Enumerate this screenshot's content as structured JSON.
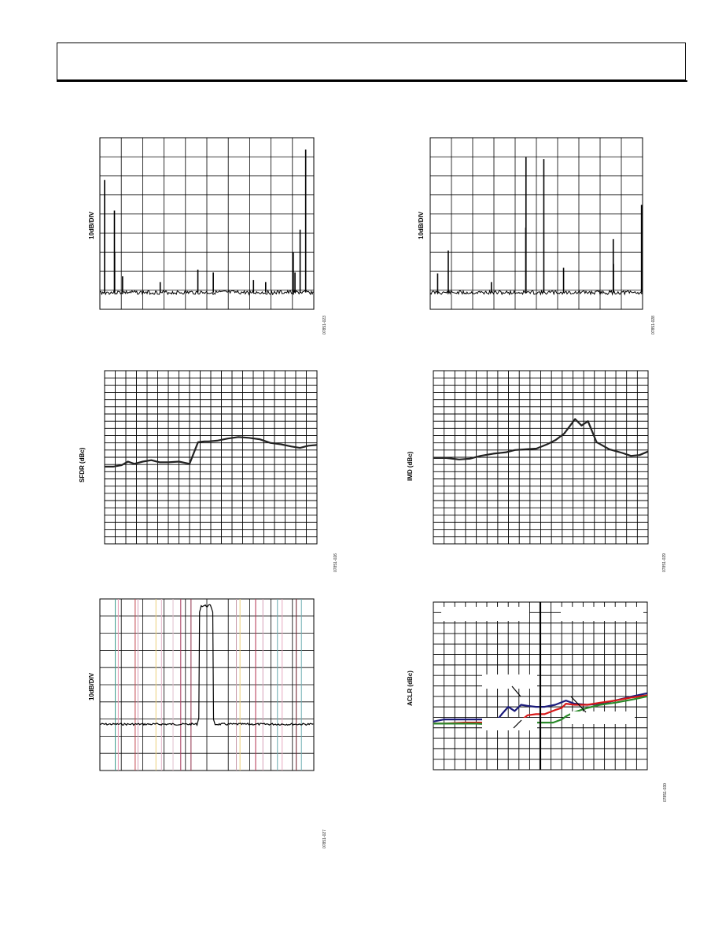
{
  "page": {},
  "chart_data": [
    {
      "id": "fig23",
      "type": "line",
      "ylabel": "10dB/DIV",
      "figure_id": "07851-023",
      "grid": true,
      "x_divisions": 10,
      "y_divisions": 9,
      "noise_floor_div": 0.4,
      "spikes": [
        {
          "x": 0.22,
          "h": 5.9
        },
        {
          "x": 0.68,
          "h": 4.3
        },
        {
          "x": 0.69,
          "h": 2.1
        },
        {
          "x": 1.06,
          "h": 0.85
        },
        {
          "x": 2.82,
          "h": 0.55
        },
        {
          "x": 4.58,
          "h": 1.2
        },
        {
          "x": 5.3,
          "h": 1.05
        },
        {
          "x": 7.18,
          "h": 0.65
        },
        {
          "x": 7.75,
          "h": 0.55
        },
        {
          "x": 9.04,
          "h": 2.1
        },
        {
          "x": 9.12,
          "h": 1.05
        },
        {
          "x": 9.36,
          "h": 3.3
        },
        {
          "x": 9.62,
          "h": 7.5
        }
      ]
    },
    {
      "id": "fig28",
      "type": "line",
      "ylabel": "10dB/DIV",
      "figure_id": "07851-028",
      "grid": true,
      "x_divisions": 10,
      "y_divisions": 9,
      "noise_floor_div": 0.4,
      "spikes": [
        {
          "x": 0.35,
          "h": 1.0
        },
        {
          "x": 0.85,
          "h": 2.2
        },
        {
          "x": 2.88,
          "h": 0.55
        },
        {
          "x": 4.5,
          "h": 3.4
        },
        {
          "x": 4.51,
          "h": 7.1
        },
        {
          "x": 5.35,
          "h": 7.0
        },
        {
          "x": 6.28,
          "h": 1.3
        },
        {
          "x": 8.62,
          "h": 2.8
        },
        {
          "x": 8.63,
          "h": 1.5
        },
        {
          "x": 9.95,
          "h": 4.6
        }
      ]
    },
    {
      "id": "fig26",
      "type": "line",
      "ylabel": "SFDR (dBc)",
      "figure_id": "07851-026",
      "grid": true,
      "x_divisions": 20,
      "y_divisions": 24,
      "series": [
        {
          "x": [
            0,
            0.04,
            0.08,
            0.11,
            0.14,
            0.18,
            0.22,
            0.26,
            0.3,
            0.35,
            0.4,
            0.44,
            0.47,
            0.49,
            0.53,
            0.58,
            0.63,
            0.68,
            0.73,
            0.78,
            0.83,
            0.88,
            0.92,
            0.96,
            1.0
          ],
          "y": [
            10.7,
            10.7,
            10.9,
            11.4,
            11.1,
            11.4,
            11.6,
            11.3,
            11.3,
            11.4,
            11.1,
            14.1,
            14.2,
            14.2,
            14.3,
            14.6,
            14.8,
            14.7,
            14.5,
            14.0,
            13.8,
            13.5,
            13.3,
            13.6,
            13.7
          ]
        }
      ]
    },
    {
      "id": "fig29",
      "type": "line",
      "ylabel": "IMD (dBc)",
      "figure_id": "07851-029",
      "grid": true,
      "x_divisions": 20,
      "y_divisions": 24,
      "series": [
        {
          "x": [
            0,
            0.06,
            0.12,
            0.17,
            0.22,
            0.28,
            0.34,
            0.38,
            0.43,
            0.48,
            0.53,
            0.57,
            0.61,
            0.64,
            0.66,
            0.69,
            0.72,
            0.76,
            0.82,
            0.88,
            0.92,
            0.96,
            1.0
          ],
          "y": [
            11.9,
            11.9,
            11.7,
            11.8,
            12.2,
            12.5,
            12.7,
            13.0,
            13.1,
            13.2,
            13.8,
            14.4,
            15.3,
            16.5,
            17.3,
            16.4,
            17.0,
            14.1,
            13.1,
            12.6,
            12.2,
            12.3,
            12.8
          ]
        }
      ]
    },
    {
      "id": "fig27",
      "type": "line",
      "ylabel": "10dB/DIV",
      "figure_id": "07851-027",
      "grid": true,
      "x_divisions": 10,
      "y_divisions": 10,
      "floor_div": 2.7,
      "band": {
        "x0": 4.55,
        "x1": 5.35,
        "top_div": 9.6
      },
      "colored_lines": [
        {
          "x": 0.72,
          "color": "#3a9a8a"
        },
        {
          "x": 0.86,
          "color": "#e59ab4"
        },
        {
          "x": 1.65,
          "color": "#c0404a"
        },
        {
          "x": 1.78,
          "color": "#d7a0b8"
        },
        {
          "x": 2.62,
          "color": "#ecd07a"
        },
        {
          "x": 2.88,
          "color": "#e3b4c6"
        },
        {
          "x": 3.42,
          "color": "#e2bfcd"
        },
        {
          "x": 3.78,
          "color": "#a63a5e"
        },
        {
          "x": 4.26,
          "color": "#8a2a44"
        },
        {
          "x": 6.38,
          "color": "#c89aaa"
        },
        {
          "x": 6.55,
          "color": "#ecd07a"
        },
        {
          "x": 7.28,
          "color": "#b3324f"
        },
        {
          "x": 7.62,
          "color": "#d7a0b8"
        },
        {
          "x": 8.3,
          "color": "#6aaab0"
        },
        {
          "x": 8.52,
          "color": "#e7a8be"
        },
        {
          "x": 9.18,
          "color": "#6e1a28"
        },
        {
          "x": 9.42,
          "color": "#6aaab0"
        }
      ]
    },
    {
      "id": "fig30",
      "type": "line",
      "ylabel": "ACLR (dBc)",
      "figure_id": "07851-030",
      "grid": true,
      "x_divisions": 20,
      "y_divisions": 16,
      "divider_x": 0.5,
      "series": [
        {
          "color": "#1a1a7a",
          "x": [
            0,
            0.05,
            0.1,
            0.2,
            0.3,
            0.32,
            0.35,
            0.38,
            0.41,
            0.44,
            0.48,
            0.52,
            0.57,
            0.62,
            0.66,
            0.72,
            0.78,
            0.85,
            0.93,
            1.0
          ],
          "y": [
            4.6,
            4.8,
            4.8,
            4.8,
            4.8,
            5.3,
            6.0,
            5.6,
            6.2,
            6.1,
            6.0,
            6.0,
            6.2,
            6.6,
            6.3,
            6.2,
            6.3,
            6.6,
            7.0,
            7.3
          ]
        },
        {
          "color": "#d81818",
          "x": [
            0,
            0.05,
            0.15,
            0.2,
            0.28,
            0.32,
            0.35,
            0.38,
            0.41,
            0.44,
            0.48,
            0.52,
            0.57,
            0.6,
            0.62,
            0.66,
            0.72,
            0.78,
            0.85,
            0.93,
            1.0
          ],
          "y": [
            4.4,
            4.4,
            4.5,
            4.5,
            4.5,
            4.3,
            4.8,
            4.9,
            4.7,
            5.2,
            5.3,
            5.3,
            5.7,
            5.9,
            6.3,
            6.2,
            6.2,
            6.4,
            6.6,
            6.9,
            7.1
          ]
        },
        {
          "color": "#2a8a2a",
          "x": [
            0,
            0.05,
            0.1,
            0.15,
            0.2,
            0.3,
            0.32,
            0.35,
            0.4,
            0.44,
            0.48,
            0.52,
            0.56,
            0.6,
            0.62,
            0.66,
            0.72,
            0.78,
            0.85,
            0.93,
            1.0
          ],
          "y": [
            4.4,
            4.4,
            4.4,
            4.4,
            4.4,
            4.3,
            4.4,
            4.4,
            4.4,
            4.5,
            4.5,
            4.5,
            4.5,
            4.8,
            5.1,
            5.5,
            5.9,
            6.2,
            6.4,
            6.7,
            7.0
          ]
        }
      ]
    }
  ]
}
